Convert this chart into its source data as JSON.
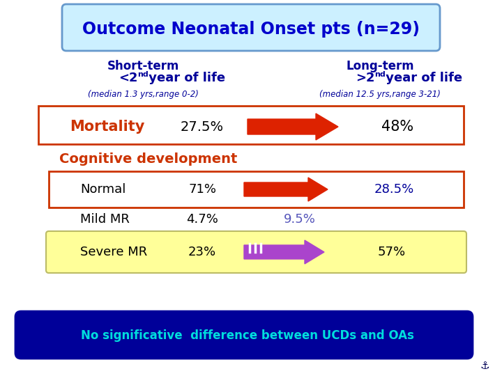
{
  "title": "Outcome Neonatal Onset pts (n=29)",
  "title_color": "#0000CC",
  "title_box_facecolor": "#CCF0FF",
  "title_box_edgecolor": "#6699CC",
  "short_term_label": "Short-term",
  "short_term_median": "(median 1.3 yrs,range 0-2)",
  "long_term_label": "Long-term",
  "long_term_median": "(median 12.5 yrs,range 3-21)",
  "header_color": "#000099",
  "mortality_label": "Mortality",
  "mortality_short": "27.5%",
  "mortality_long": "48%",
  "mortality_label_color": "#CC3300",
  "mortality_box_edge": "#CC3300",
  "cog_dev_label": "Cognitive development",
  "cog_dev_color": "#CC3300",
  "normal_label": "Normal",
  "normal_short": "71%",
  "normal_long": "28.5%",
  "normal_long_color": "#000099",
  "normal_box_edge": "#CC3300",
  "mildmr_label": "Mild MR",
  "mildmr_short": "4.7%",
  "mildmr_long": "9.5%",
  "mildmr_long_color": "#5555BB",
  "severemr_label": "Severe MR",
  "severemr_short": "23%",
  "severemr_long": "57%",
  "severemr_box_face": "#FFFF99",
  "severemr_box_edge": "#BBBB66",
  "arrow_red": "#DD2200",
  "arrow_purple": "#AA44CC",
  "bottom_text": "No significative  difference between UCDs and OAs",
  "bottom_box_face": "#000099",
  "bottom_text_color": "#00DDDD",
  "bg_color": "#FFFFFF",
  "text_black": "#000000"
}
